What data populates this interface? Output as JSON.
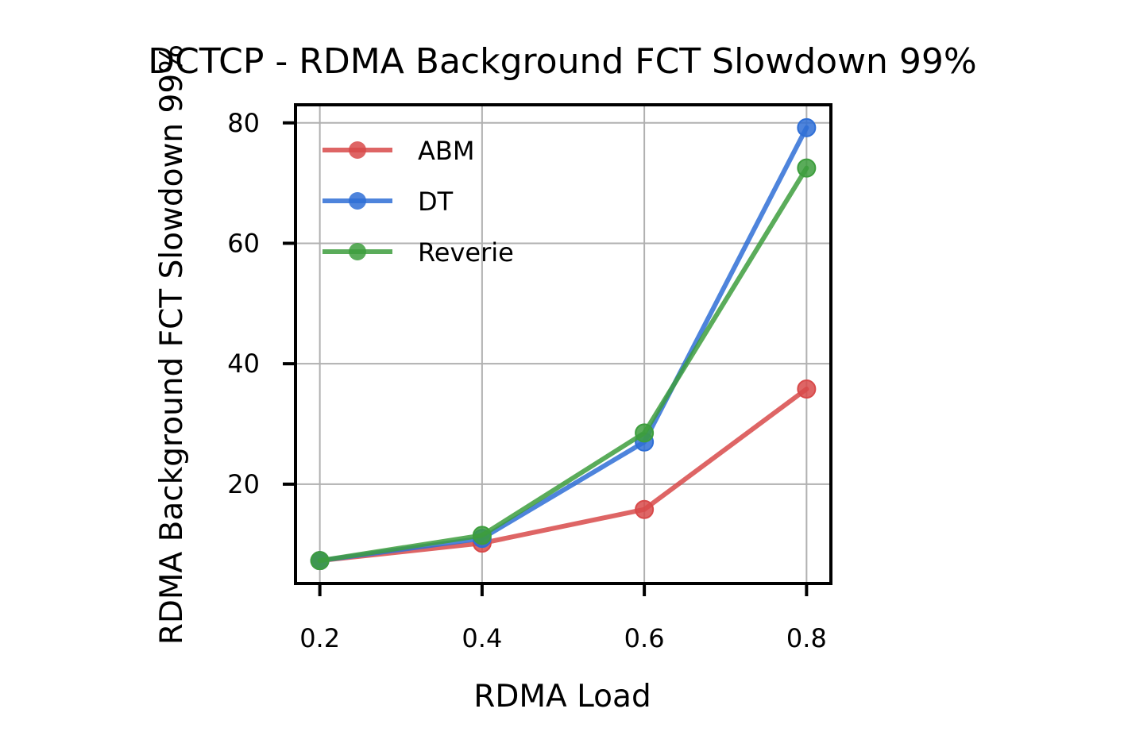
{
  "chart_data": {
    "type": "line",
    "title": "DCTCP - RDMA Background FCT Slowdown 99%",
    "xlabel": "RDMA Load",
    "ylabel": "RDMA Background FCT Slowdown 99%",
    "x": [
      0.2,
      0.4,
      0.6,
      0.8
    ],
    "x_ticks": [
      "0.2",
      "0.4",
      "0.6",
      "0.8"
    ],
    "y_ticks": [
      20,
      40,
      60,
      80
    ],
    "xlim": [
      0.17,
      0.83
    ],
    "ylim": [
      3.5,
      83
    ],
    "grid": true,
    "legend_position": "top-left",
    "series": [
      {
        "name": "ABM",
        "color": "#d84a4a",
        "values": [
          7.3,
          10.2,
          15.8,
          35.8
        ]
      },
      {
        "name": "DT",
        "color": "#2f6fd6",
        "values": [
          7.3,
          11.0,
          27.0,
          79.2
        ]
      },
      {
        "name": "Reverie",
        "color": "#3d9e3d",
        "values": [
          7.3,
          11.5,
          28.5,
          72.5
        ]
      }
    ]
  }
}
